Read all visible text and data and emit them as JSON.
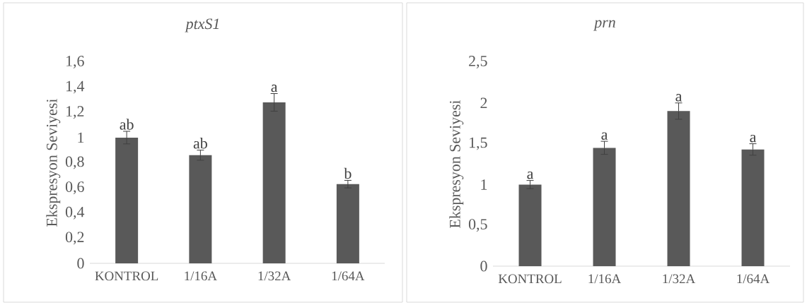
{
  "chart_data": [
    {
      "type": "bar",
      "title": "ptxS1",
      "ylabel": "Ekspresyon Seviyesi",
      "categories": [
        "KONTROL",
        "1/16A",
        "1/32A",
        "1/64A"
      ],
      "values": [
        1.0,
        0.86,
        1.28,
        0.63
      ],
      "errors": [
        0.05,
        0.04,
        0.07,
        0.03
      ],
      "color": "#595959",
      "ylim": [
        0,
        1.6
      ],
      "yticks": [
        0,
        {
          "value": 0.2,
          "label": "0,2"
        },
        {
          "value": 0.4,
          "label": "0,4"
        },
        {
          "value": 0.6,
          "label": "0,6"
        },
        {
          "value": 0.8,
          "label": "0,8"
        },
        1,
        {
          "value": 1.2,
          "label": "1,2"
        },
        {
          "value": 1.4,
          "label": "1,4"
        },
        {
          "value": 1.6,
          "label": "1,6"
        }
      ],
      "annotations": [
        {
          "text": "ab",
          "x": "KONTROL",
          "y": 1.05
        },
        {
          "text": "ab",
          "x": "1/16A",
          "y": 0.9
        },
        {
          "text": "a",
          "x": "1/32A",
          "y": 1.35
        },
        {
          "text": "b",
          "x": "1/64A",
          "y": 0.66
        }
      ]
    },
    {
      "type": "bar",
      "title": "prn",
      "ylabel": "Ekspresyon Seviyesi",
      "categories": [
        "KONTROL",
        "1/16A",
        "1/32A",
        "1/64A"
      ],
      "values": [
        1.0,
        1.45,
        1.9,
        1.43
      ],
      "errors": [
        0.05,
        0.08,
        0.1,
        0.07
      ],
      "color": "#595959",
      "ylim": [
        0,
        2.5
      ],
      "yticks": [
        0,
        {
          "value": 0.5,
          "label": "0,5"
        },
        1,
        {
          "value": 1.5,
          "label": "1,5"
        },
        2,
        {
          "value": 2.5,
          "label": "2,5"
        }
      ],
      "annotations": [
        {
          "text": "a",
          "x": "KONTROL",
          "y": 1.05
        },
        {
          "text": "a",
          "x": "1/16A",
          "y": 1.53
        },
        {
          "text": "a",
          "x": "1/32A",
          "y": 2.0
        },
        {
          "text": "a",
          "x": "1/64A",
          "y": 1.5
        }
      ]
    }
  ]
}
